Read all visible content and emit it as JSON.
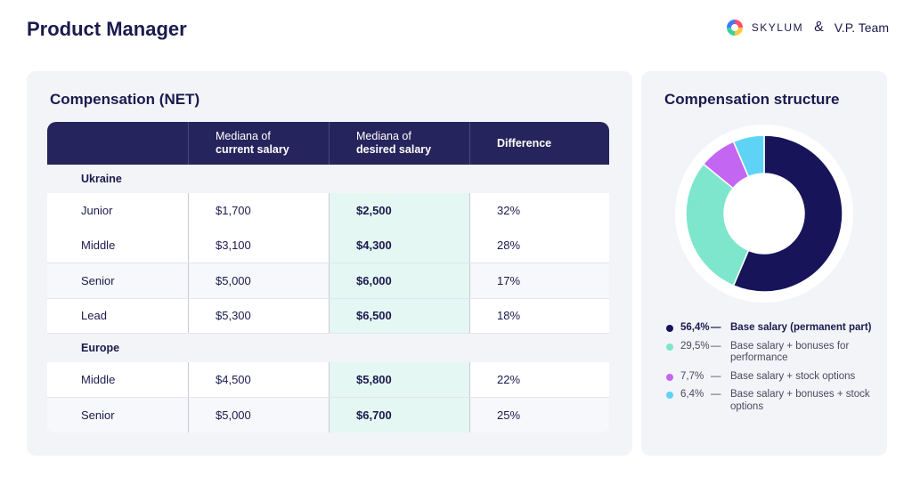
{
  "page_title": "Product Manager",
  "brand": {
    "skylum": "SKYLUM",
    "amp": "&",
    "vp": "V.P. Team"
  },
  "table": {
    "title": "Compensation (NET)",
    "headers": [
      {
        "line1": "",
        "line2": ""
      },
      {
        "line1": "Mediana of",
        "line2": "current salary"
      },
      {
        "line1": "Mediana of",
        "line2": "desired salary"
      },
      {
        "line1": "",
        "line2": "Difference"
      }
    ],
    "groups": [
      {
        "name": "Ukraine",
        "rows": [
          {
            "level": "Junior",
            "current": "$1,700",
            "desired": "$2,500",
            "diff": "32%"
          },
          {
            "level": "Middle",
            "current": "$3,100",
            "desired": "$4,300",
            "diff": "28%"
          },
          {
            "level": "Senior",
            "current": "$5,000",
            "desired": "$6,000",
            "diff": "17%"
          },
          {
            "level": "Lead",
            "current": "$5,300",
            "desired": "$6,500",
            "diff": "18%"
          }
        ]
      },
      {
        "name": "Europe",
        "rows": [
          {
            "level": "Middle",
            "current": "$4,500",
            "desired": "$5,800",
            "diff": "22%"
          },
          {
            "level": "Senior",
            "current": "$5,000",
            "desired": "$6,700",
            "diff": "25%"
          }
        ]
      }
    ]
  },
  "chart_data": {
    "type": "pie",
    "title": "Compensation structure",
    "categories": [
      "Base salary (permanent part)",
      "Base salary + bonuses for performance",
      "Base salary + stock options",
      "Base salary + bonuses + stock options"
    ],
    "values": [
      56.4,
      29.5,
      7.7,
      6.4
    ],
    "labels": [
      "56,4%",
      "29,5%",
      "7,7%",
      "6,4%"
    ],
    "colors": [
      "#17145a",
      "#7ee6cc",
      "#c366f2",
      "#5fd3f6"
    ],
    "legend": "bottom"
  },
  "legend_items": [
    {
      "pct": "56,4%",
      "dash": "—",
      "desc": "Base salary (permanent part)"
    },
    {
      "pct": "29,5%",
      "dash": "—",
      "desc": "Base salary + bonuses for performance"
    },
    {
      "pct": "7,7%",
      "dash": "—",
      "desc": "Base salary + stock options"
    },
    {
      "pct": "6,4%",
      "dash": "—",
      "desc": "Base salary + bonuses + stock options"
    }
  ]
}
